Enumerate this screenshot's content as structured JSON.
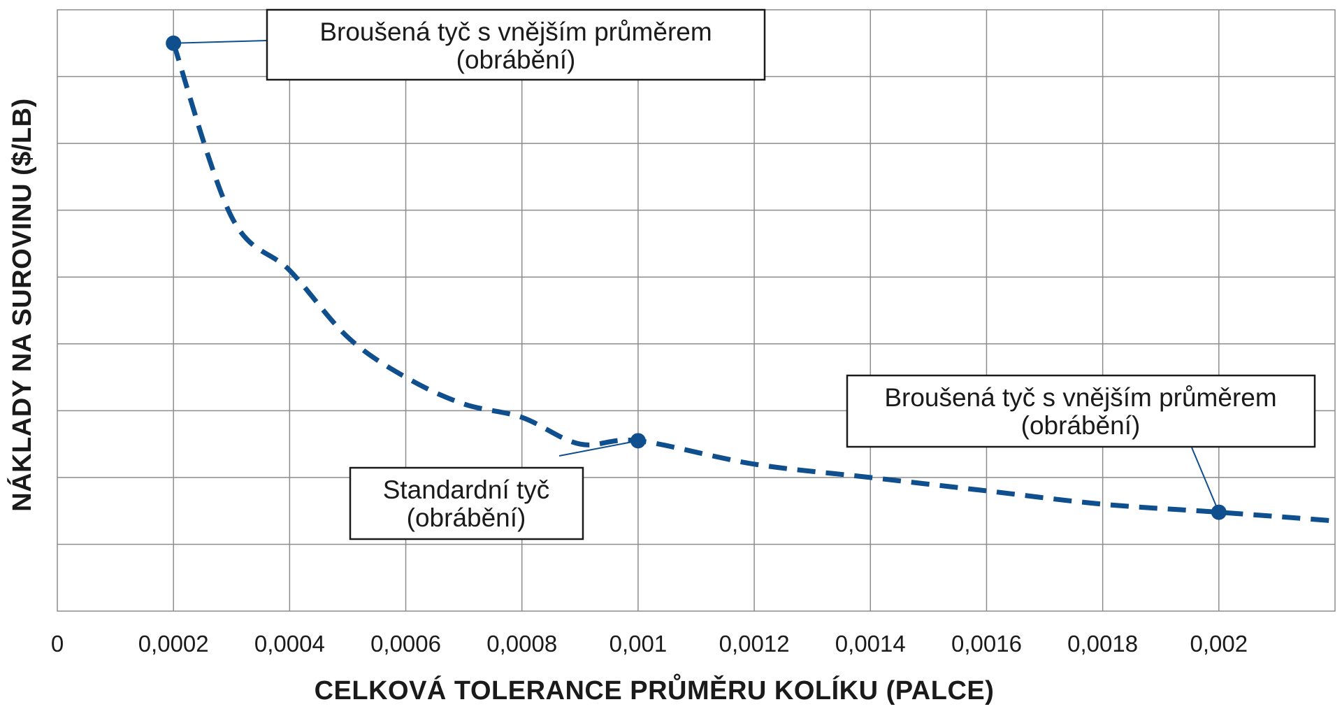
{
  "chart_data": {
    "type": "line",
    "title": "",
    "xlabel": "CELKOVÁ TOLERANCE PRŮMĚRU KOLÍKU (PALCE)",
    "ylabel": "NÁKLADY NA SUROVINU ($/LB)",
    "xlim": [
      0,
      0.0022
    ],
    "ylim": [
      0,
      9
    ],
    "x_ticks": [
      "0",
      "0,0002",
      "0,0004",
      "0,0006",
      "0,0008",
      "0,001",
      "0,0012",
      "0,0014",
      "0,0016",
      "0,0018",
      "0,002"
    ],
    "x_tick_values": [
      0,
      0.0002,
      0.0004,
      0.0006,
      0.0008,
      0.001,
      0.0012,
      0.0014,
      0.0016,
      0.0018,
      0.002
    ],
    "y_tick_values": [
      0,
      1,
      2,
      3,
      4,
      5,
      6,
      7,
      8,
      9
    ],
    "grid": true,
    "series": [
      {
        "style": "dashed",
        "color": "#0f4f8e",
        "x": [
          0.0002,
          0.0003,
          0.0004,
          0.0005,
          0.0006,
          0.0007,
          0.0008,
          0.0009,
          0.001,
          0.0012,
          0.0014,
          0.0016,
          0.0018,
          0.002,
          0.0022
        ],
        "y": [
          8.5,
          5.9,
          5.1,
          4.1,
          3.5,
          3.1,
          2.9,
          2.5,
          2.55,
          2.2,
          2.0,
          1.8,
          1.6,
          1.48,
          1.35
        ]
      }
    ],
    "points": [
      {
        "x": 0.0002,
        "y": 8.5
      },
      {
        "x": 0.001,
        "y": 2.55
      },
      {
        "x": 0.002,
        "y": 1.48
      }
    ],
    "annotations": [
      {
        "lines": [
          "Broušená tyč s vnějším průměrem",
          "(obrábění)"
        ],
        "point_index": 0
      },
      {
        "lines": [
          "Standardní tyč",
          "(obrábění)"
        ],
        "point_index": 1
      },
      {
        "lines": [
          "Broušená tyč s vnějším průměrem",
          "(obrábění)"
        ],
        "point_index": 2
      }
    ]
  }
}
